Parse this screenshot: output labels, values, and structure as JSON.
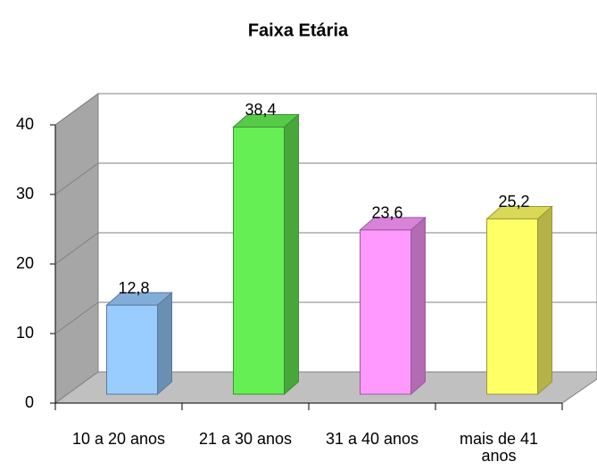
{
  "chart_data": {
    "type": "bar3d",
    "title": "Faixa Etária",
    "categories": [
      "10 a 20 anos",
      "21 a 30 anos",
      "31 a 40 anos",
      "mais de 41 anos"
    ],
    "values": [
      12.8,
      38.4,
      23.6,
      25.2
    ],
    "value_labels": [
      "12,8",
      "38,4",
      "23,6",
      "25,2"
    ],
    "colors": [
      "#99ccff",
      "#66ee55",
      "#ff99ff",
      "#ffff66"
    ],
    "ylim": [
      0,
      40
    ],
    "yticks": [
      0,
      10,
      20,
      30,
      40
    ],
    "grid": true
  }
}
